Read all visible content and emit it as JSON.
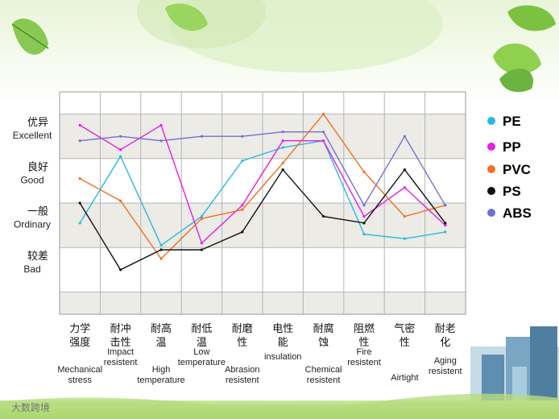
{
  "brand_text": "大数跨境",
  "chart_data": {
    "type": "line",
    "ylim": [
      0,
      5
    ],
    "y_levels": [
      {
        "value": 4,
        "zh": "优异",
        "en": "Excellent"
      },
      {
        "value": 3,
        "zh": "良好",
        "en": "Good"
      },
      {
        "value": 2,
        "zh": "一般",
        "en": "Ordinary"
      },
      {
        "value": 1,
        "zh": "较差",
        "en": "Bad"
      }
    ],
    "categories": [
      {
        "zh": [
          "力学",
          "强度"
        ],
        "en": [
          "Mechanical",
          "stress"
        ]
      },
      {
        "zh": [
          "耐冲",
          "击性"
        ],
        "en": [
          "Impact",
          "resistent"
        ]
      },
      {
        "zh": [
          "耐高",
          "温"
        ],
        "en": [
          "High",
          "temperature"
        ]
      },
      {
        "zh": [
          "耐低",
          "温"
        ],
        "en": [
          "Low",
          "temperature"
        ]
      },
      {
        "zh": [
          "耐磨",
          "性"
        ],
        "en": [
          "Abrasion",
          "resistent"
        ]
      },
      {
        "zh": [
          "电性",
          "能"
        ],
        "en": [
          "insulation"
        ]
      },
      {
        "zh": [
          "耐腐",
          "蚀"
        ],
        "en": [
          "Chemical",
          "resistent"
        ]
      },
      {
        "zh": [
          "阻燃",
          "性"
        ],
        "en": [
          "Fire",
          "resistent"
        ]
      },
      {
        "zh": [
          "气密",
          "性"
        ],
        "en": [
          "Airtight"
        ]
      },
      {
        "zh": [
          "耐老",
          "化"
        ],
        "en": [
          "Aging",
          "resistent"
        ]
      }
    ],
    "series": [
      {
        "name": "PE",
        "color": "#2ab8e0",
        "values": [
          2.05,
          3.55,
          1.55,
          2.2,
          3.45,
          3.75,
          3.9,
          1.8,
          1.7,
          1.85
        ]
      },
      {
        "name": "PP",
        "color": "#e61ee6",
        "values": [
          4.25,
          3.7,
          4.25,
          1.6,
          2.45,
          3.9,
          3.9,
          2.2,
          2.85,
          2.0
        ]
      },
      {
        "name": "PVC",
        "color": "#f07020",
        "values": [
          3.05,
          2.55,
          1.25,
          2.15,
          2.35,
          3.4,
          4.5,
          3.2,
          2.2,
          2.45
        ]
      },
      {
        "name": "PS",
        "color": "#111111",
        "values": [
          2.5,
          1.0,
          1.45,
          1.45,
          1.85,
          3.25,
          2.2,
          2.05,
          3.25,
          2.05
        ]
      },
      {
        "name": "ABS",
        "color": "#7070d0",
        "values": [
          3.9,
          4.0,
          3.9,
          4.0,
          4.0,
          4.1,
          4.1,
          2.45,
          4.0,
          2.45
        ]
      }
    ]
  }
}
